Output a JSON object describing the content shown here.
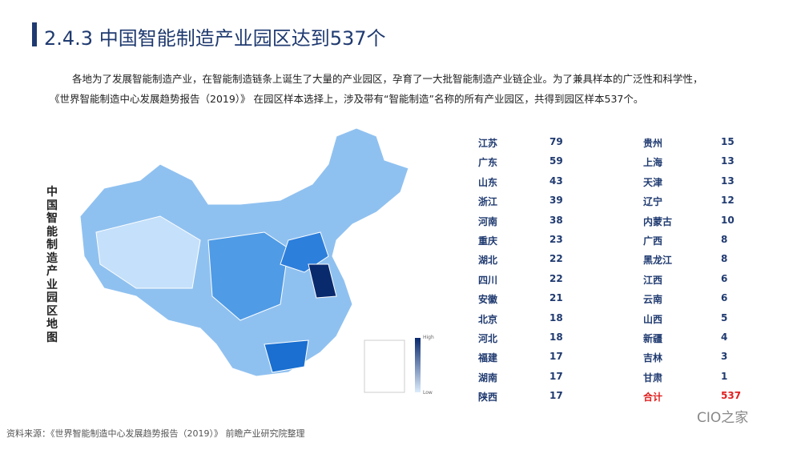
{
  "header": {
    "title": "2.4.3 中国智能制造产业园区达到537个"
  },
  "paragraph": [
    "各地为了发展智能制造产业，在智能制造链条上诞生了大量的产业园区，孕育了一大批智能制造产业链企业。为了兼具样本的广泛性和科学性，",
    "《世界智能制造中心发展趋势报告（2019）》 在园区样本选择上，涉及带有“智能制造”名称的所有产业园区，共得到园区样本537个。"
  ],
  "map": {
    "label": "中国智能制造产业园区地图",
    "legend_high": "High",
    "legend_low": "Low"
  },
  "table": {
    "left": [
      [
        "江苏",
        79
      ],
      [
        "广东",
        59
      ],
      [
        "山东",
        43
      ],
      [
        "浙江",
        39
      ],
      [
        "河南",
        38
      ],
      [
        "重庆",
        23
      ],
      [
        "湖北",
        22
      ],
      [
        "四川",
        22
      ],
      [
        "安徽",
        21
      ],
      [
        "北京",
        18
      ],
      [
        "河北",
        18
      ],
      [
        "福建",
        17
      ],
      [
        "湖南",
        17
      ],
      [
        "陕西",
        17
      ]
    ],
    "right": [
      [
        "贵州",
        15
      ],
      [
        "上海",
        13
      ],
      [
        "天津",
        13
      ],
      [
        "辽宁",
        12
      ],
      [
        "内蒙古",
        10
      ],
      [
        "广西",
        8
      ],
      [
        "黑龙江",
        8
      ],
      [
        "江西",
        6
      ],
      [
        "云南",
        6
      ],
      [
        "山西",
        5
      ],
      [
        "新疆",
        4
      ],
      [
        "吉林",
        3
      ],
      [
        "甘肃",
        1
      ],
      [
        "合计",
        537
      ]
    ]
  },
  "source": "资料来源：《世界智能制造中心发展趋势报告（2019）》 前瞻产业研究院整理",
  "watermark": "CIO之家"
}
